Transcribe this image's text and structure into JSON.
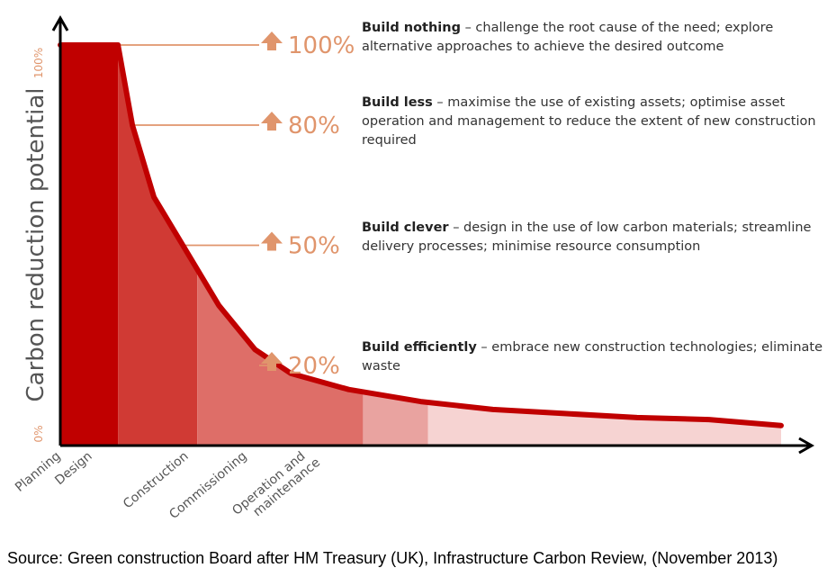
{
  "chart_data": {
    "type": "area",
    "y_axis": {
      "label": "Carbon reduction potential",
      "top_tick": "100%",
      "bottom_tick": "0%",
      "ylim": [
        0,
        100
      ]
    },
    "stages": [
      {
        "name": "Planning",
        "label_lines": [
          "Planning"
        ]
      },
      {
        "name": "Design",
        "label_lines": [
          "Design"
        ]
      },
      {
        "name": "Construction",
        "label_lines": [
          "Construction"
        ]
      },
      {
        "name": "Commissioning",
        "label_lines": [
          "Commissioning"
        ]
      },
      {
        "name": "Operation and maintenance",
        "label_lines": [
          "Operation and",
          "maintenance"
        ]
      }
    ],
    "curve": {
      "x": [
        0,
        8,
        10,
        13,
        17,
        22,
        27,
        32,
        40,
        50,
        60,
        70,
        80,
        90,
        100
      ],
      "y": [
        100,
        100,
        80,
        62,
        50,
        35,
        24,
        18,
        14,
        11,
        9,
        8,
        7,
        6.5,
        5
      ]
    },
    "stage_bounds": [
      0,
      8,
      19,
      42,
      51,
      100
    ],
    "levels": [
      {
        "percent": "100%",
        "value": 100,
        "title": "Build nothing",
        "text": " – challenge the root cause of the need; explore alternative approaches to achieve the desired outcome"
      },
      {
        "percent": "80%",
        "value": 80,
        "title": "Build less",
        "text": " – maximise the use of existing assets; optimise asset operation and management to reduce the extent of new construction required"
      },
      {
        "percent": "50%",
        "value": 50,
        "title": "Build clever",
        "text": " – design in the use of low carbon materials; streamline delivery processes; minimise resource consumption"
      },
      {
        "percent": "20%",
        "value": 20,
        "title": "Build efficiently",
        "text": " – embrace new construction technologies; eliminate waste"
      }
    ],
    "colors": {
      "stage_fills": [
        "#c00000",
        "#d03a34",
        "#de6e68",
        "#e9a3a0",
        "#f6d3d2"
      ],
      "curve": "#c00000",
      "arrow": "#e0956c",
      "percent_text": "#e0956c",
      "axis": "#000000",
      "y_label": "#555555",
      "y_tick": "#e0956c"
    }
  },
  "annotations": [
    {
      "title": "Build nothing",
      "text": " – challenge the root cause of the need; explore alternative approaches to achieve the desired outcome"
    },
    {
      "title": "Build less",
      "text": " – maximise the use of existing assets; optimise asset operation and management to reduce the extent of new construction required"
    },
    {
      "title": "Build clever",
      "text": " – design in the use of low carbon materials; streamline delivery processes; minimise resource consumption"
    },
    {
      "title": "Build efficiently",
      "text": " – embrace new construction technologies; eliminate waste"
    }
  ],
  "source": "Source: Green construction Board after HM Treasury (UK), Infrastructure Carbon Review, (November 2013)"
}
